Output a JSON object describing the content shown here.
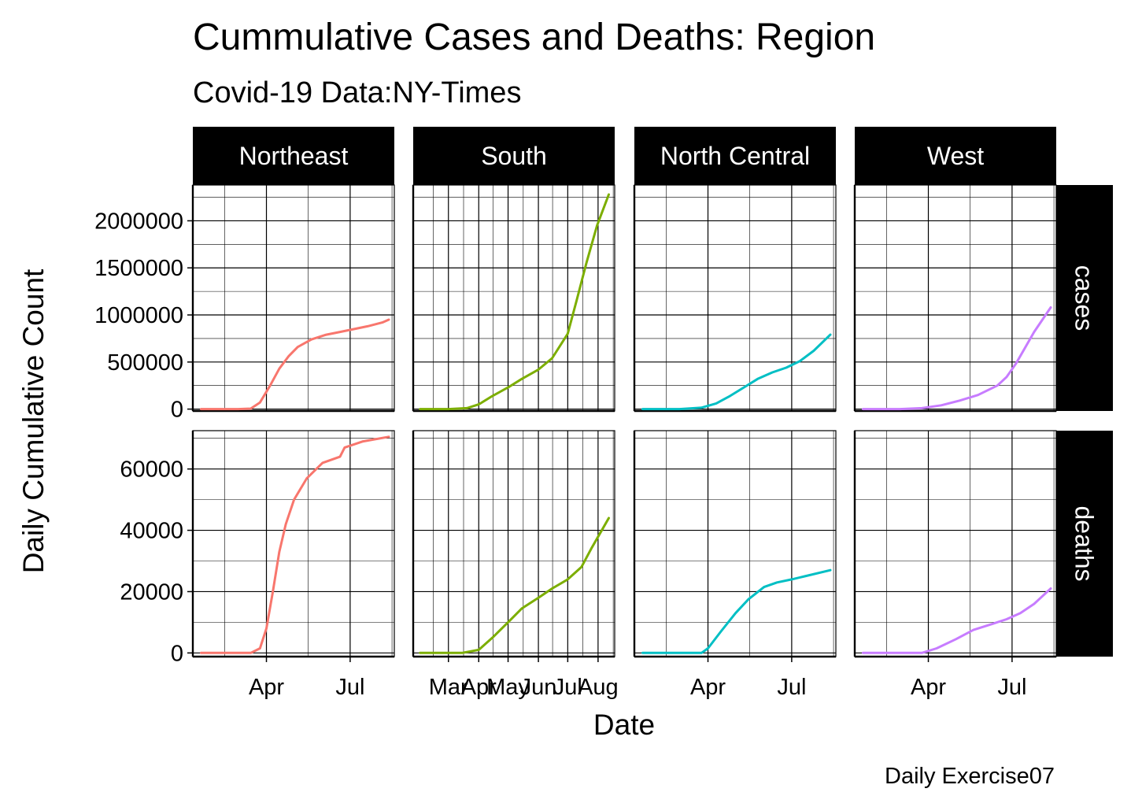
{
  "title": "Cummulative Cases and Deaths: Region",
  "subtitle": "Covid-19 Data:NY-Times",
  "caption": "Daily Exercise07",
  "chart_data": {
    "type": "line",
    "xlabel": "Date",
    "ylabel": "Daily Cumulative Count",
    "regions": [
      {
        "name": "Northeast",
        "color": "#F8766D"
      },
      {
        "name": "South",
        "color": "#7CAE00"
      },
      {
        "name": "North Central",
        "color": "#00BFC4"
      },
      {
        "name": "West",
        "color": "#C77CFF"
      }
    ],
    "rows": [
      {
        "name": "cases",
        "ylim": [
          -20000,
          2380000
        ],
        "ticks": [
          0,
          500000,
          1000000,
          1500000,
          2000000
        ],
        "tick_labels": [
          "0",
          "500000",
          "1000000",
          "1500000",
          "2000000"
        ]
      },
      {
        "name": "deaths",
        "ylim": [
          -1200,
          72500
        ],
        "ticks": [
          0,
          20000,
          40000,
          60000
        ],
        "tick_labels": [
          "0",
          "20000",
          "40000",
          "60000"
        ]
      }
    ],
    "x_ticks": [
      {
        "labels": [
          "Apr",
          "Jul"
        ],
        "dates": [
          "2020-04-01",
          "2020-07-01"
        ]
      },
      {
        "labels": [
          "Mar",
          "Apr",
          "May",
          "Jun",
          "Jul",
          "Aug"
        ],
        "dates": [
          "2020-03-01",
          "2020-04-01",
          "2020-05-01",
          "2020-06-01",
          "2020-07-01",
          "2020-08-01"
        ]
      },
      {
        "labels": [
          "Apr",
          "Jul"
        ],
        "dates": [
          "2020-04-01",
          "2020-07-01"
        ]
      },
      {
        "labels": [
          "Apr",
          "Jul"
        ],
        "dates": [
          "2020-04-01",
          "2020-07-01"
        ]
      }
    ],
    "x_range": [
      [
        "2020-01-12",
        "2020-08-18"
      ],
      [
        "2020-01-25",
        "2020-08-18"
      ],
      [
        "2020-01-12",
        "2020-08-18"
      ],
      [
        "2020-01-12",
        "2020-08-18"
      ]
    ],
    "series": [
      {
        "region": "Northeast",
        "metric": "cases",
        "x": [
          "2020-01-21",
          "2020-03-01",
          "2020-03-15",
          "2020-03-25",
          "2020-04-05",
          "2020-04-15",
          "2020-04-25",
          "2020-05-05",
          "2020-05-20",
          "2020-06-05",
          "2020-06-20",
          "2020-07-05",
          "2020-07-20",
          "2020-08-05",
          "2020-08-12"
        ],
        "y": [
          0,
          0,
          5000,
          70000,
          250000,
          430000,
          560000,
          660000,
          740000,
          790000,
          820000,
          850000,
          880000,
          920000,
          950000
        ]
      },
      {
        "region": "South",
        "metric": "cases",
        "x": [
          "2020-02-01",
          "2020-03-01",
          "2020-03-20",
          "2020-04-01",
          "2020-04-15",
          "2020-05-01",
          "2020-05-15",
          "2020-06-01",
          "2020-06-15",
          "2020-07-01",
          "2020-07-10",
          "2020-07-20",
          "2020-07-31",
          "2020-08-12"
        ],
        "y": [
          0,
          0,
          10000,
          50000,
          140000,
          230000,
          320000,
          420000,
          540000,
          800000,
          1150000,
          1550000,
          1950000,
          2280000
        ]
      },
      {
        "region": "North Central",
        "metric": "cases",
        "x": [
          "2020-01-21",
          "2020-03-01",
          "2020-03-25",
          "2020-04-10",
          "2020-04-25",
          "2020-05-10",
          "2020-05-25",
          "2020-06-10",
          "2020-06-25",
          "2020-07-10",
          "2020-07-25",
          "2020-08-12"
        ],
        "y": [
          0,
          0,
          15000,
          60000,
          140000,
          230000,
          320000,
          390000,
          440000,
          510000,
          620000,
          790000
        ]
      },
      {
        "region": "West",
        "metric": "cases",
        "x": [
          "2020-01-21",
          "2020-03-01",
          "2020-03-25",
          "2020-04-15",
          "2020-05-05",
          "2020-05-25",
          "2020-06-15",
          "2020-06-25",
          "2020-07-05",
          "2020-07-15",
          "2020-07-25",
          "2020-08-12"
        ],
        "y": [
          0,
          0,
          10000,
          40000,
          90000,
          150000,
          250000,
          340000,
          480000,
          650000,
          820000,
          1080000
        ]
      },
      {
        "region": "Northeast",
        "metric": "deaths",
        "x": [
          "2020-01-21",
          "2020-03-15",
          "2020-03-25",
          "2020-04-01",
          "2020-04-08",
          "2020-04-15",
          "2020-04-22",
          "2020-05-01",
          "2020-05-15",
          "2020-06-01",
          "2020-06-20",
          "2020-06-25",
          "2020-07-15",
          "2020-08-12"
        ],
        "y": [
          0,
          0,
          1500,
          8000,
          20000,
          33000,
          42000,
          50000,
          57000,
          62000,
          64000,
          67000,
          69000,
          70500
        ]
      },
      {
        "region": "South",
        "metric": "deaths",
        "x": [
          "2020-02-01",
          "2020-03-15",
          "2020-04-01",
          "2020-04-15",
          "2020-05-01",
          "2020-05-15",
          "2020-06-01",
          "2020-06-15",
          "2020-07-01",
          "2020-07-15",
          "2020-07-25",
          "2020-08-12"
        ],
        "y": [
          0,
          0,
          1000,
          5000,
          10000,
          14500,
          18000,
          21000,
          24000,
          28000,
          34000,
          44000
        ]
      },
      {
        "region": "North Central",
        "metric": "deaths",
        "x": [
          "2020-01-21",
          "2020-03-25",
          "2020-04-01",
          "2020-04-15",
          "2020-05-01",
          "2020-05-15",
          "2020-06-01",
          "2020-06-15",
          "2020-07-01",
          "2020-07-15",
          "2020-08-12"
        ],
        "y": [
          0,
          0,
          1500,
          7000,
          13000,
          17500,
          21500,
          23000,
          24000,
          25000,
          27000
        ]
      },
      {
        "region": "West",
        "metric": "deaths",
        "x": [
          "2020-01-21",
          "2020-03-25",
          "2020-04-10",
          "2020-05-01",
          "2020-05-20",
          "2020-06-10",
          "2020-06-25",
          "2020-07-10",
          "2020-07-25",
          "2020-08-12"
        ],
        "y": [
          0,
          0,
          1500,
          4500,
          7500,
          9500,
          11000,
          13000,
          16000,
          21000
        ]
      }
    ]
  }
}
